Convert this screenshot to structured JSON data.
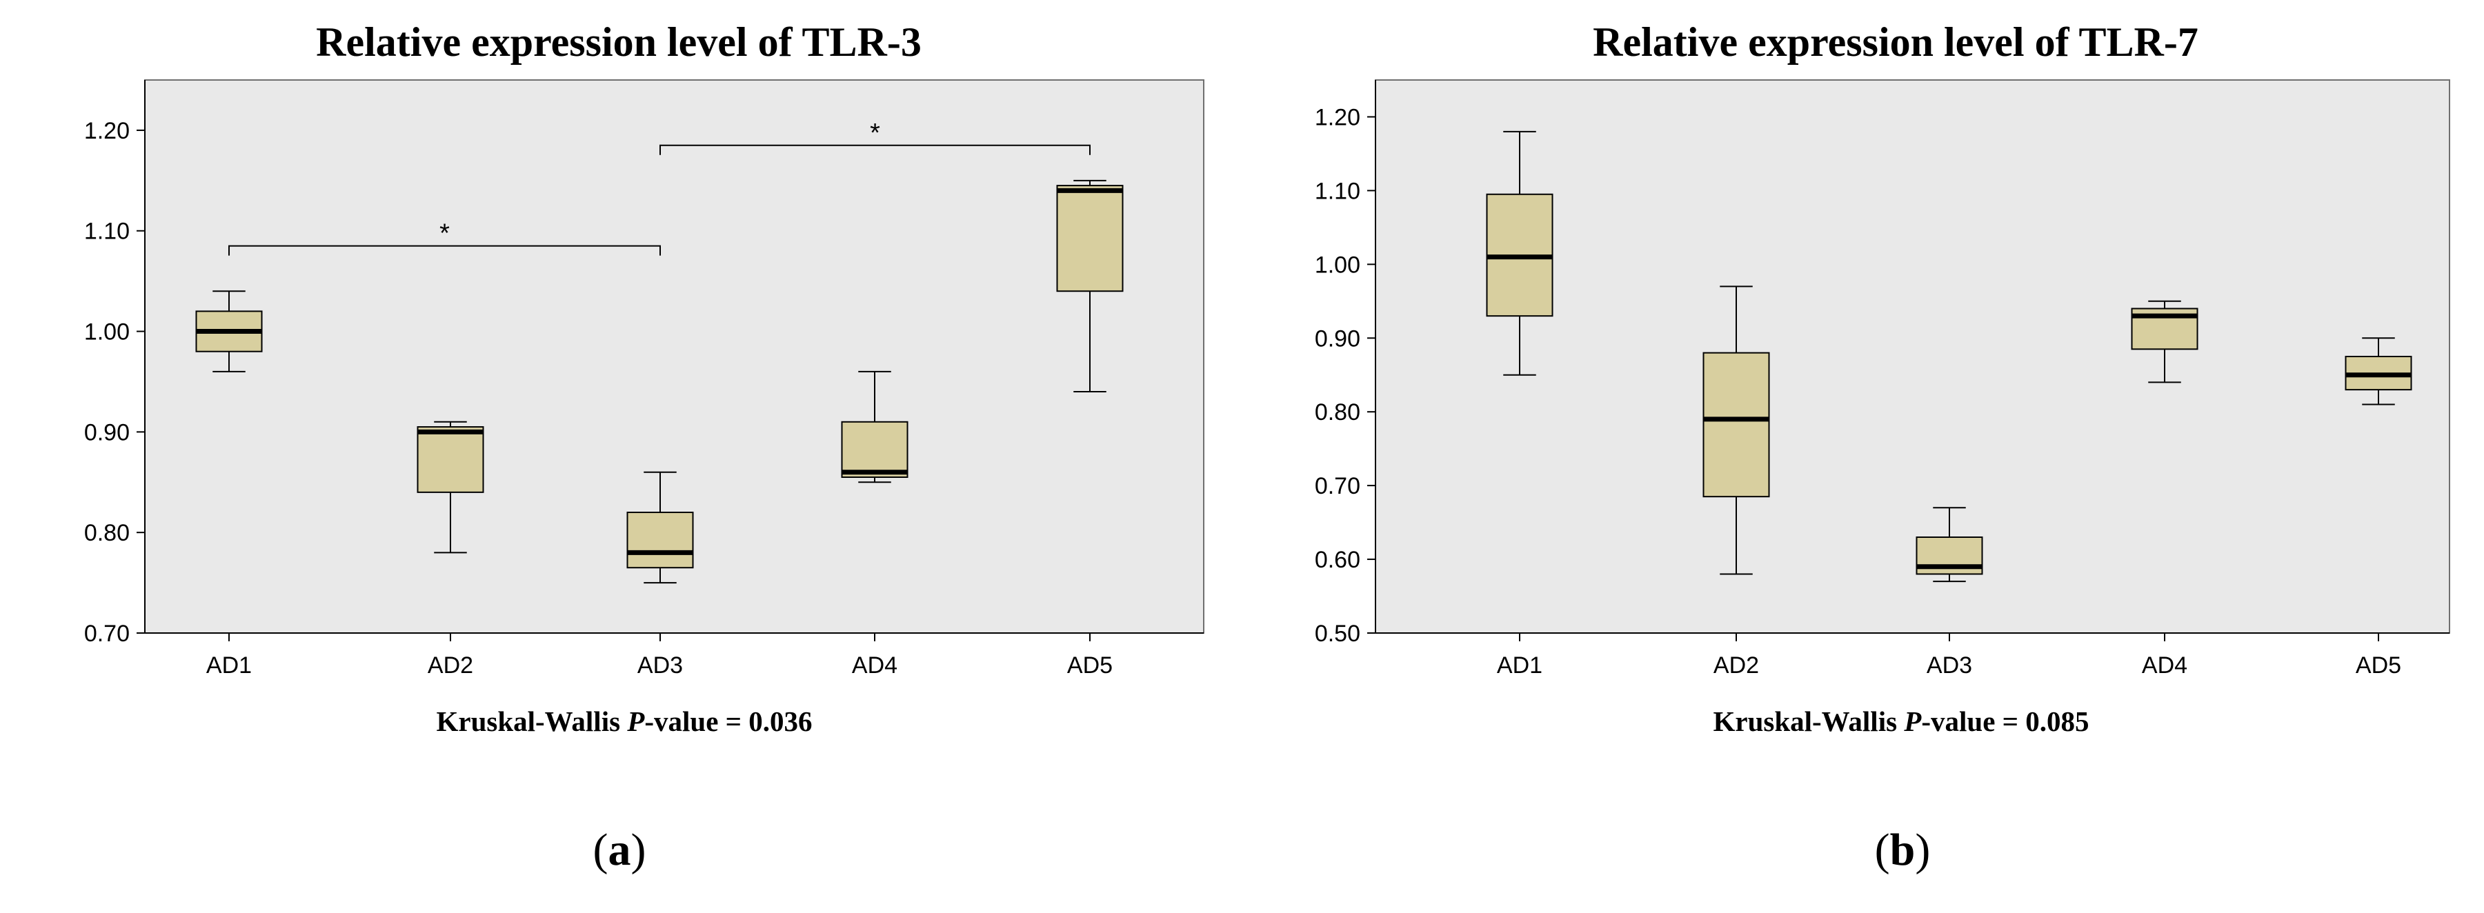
{
  "chart_data": [
    {
      "type": "boxplot",
      "title": "Relative expression level of TLR-3",
      "categories": [
        "AD1",
        "AD2",
        "AD3",
        "AD4",
        "AD5"
      ],
      "ylim": [
        0.7,
        1.25
      ],
      "yticks": [
        "0.70",
        "0.80",
        "0.90",
        "1.00",
        "1.10",
        "1.20"
      ],
      "boxes": [
        {
          "min": 0.96,
          "q1": 0.98,
          "median": 1.0,
          "q3": 1.02,
          "max": 1.04
        },
        {
          "min": 0.78,
          "q1": 0.84,
          "median": 0.9,
          "q3": 0.905,
          "max": 0.91
        },
        {
          "min": 0.75,
          "q1": 0.765,
          "median": 0.78,
          "q3": 0.82,
          "max": 0.86
        },
        {
          "min": 0.85,
          "q1": 0.855,
          "median": 0.86,
          "q3": 0.91,
          "max": 0.96
        },
        {
          "min": 0.94,
          "q1": 1.04,
          "median": 1.14,
          "q3": 1.145,
          "max": 1.15
        }
      ],
      "significance": [
        {
          "from": "AD1",
          "to": "AD3",
          "y": 1.085,
          "label": "*"
        },
        {
          "from": "AD3",
          "to": "AD5",
          "y": 1.185,
          "label": "*"
        }
      ],
      "footnote_prefix": "Kruskal-Wallis ",
      "footnote_italic": "P",
      "footnote_suffix": "-value = 0.036",
      "panel_letter": "a"
    },
    {
      "type": "boxplot",
      "title": "Relative expression level of TLR-7",
      "categories": [
        "AD1",
        "AD2",
        "AD3",
        "AD4",
        "AD5"
      ],
      "ylim": [
        0.5,
        1.25
      ],
      "yticks": [
        "0.50",
        "0.60",
        "0.70",
        "0.80",
        "0.90",
        "1.00",
        "1.10",
        "1.20"
      ],
      "boxes": [
        {
          "min": 0.85,
          "q1": 0.93,
          "median": 1.01,
          "q3": 1.095,
          "max": 1.18
        },
        {
          "min": 0.58,
          "q1": 0.685,
          "median": 0.79,
          "q3": 0.88,
          "max": 0.97
        },
        {
          "min": 0.57,
          "q1": 0.58,
          "median": 0.59,
          "q3": 0.63,
          "max": 0.67
        },
        {
          "min": 0.84,
          "q1": 0.885,
          "median": 0.93,
          "q3": 0.94,
          "max": 0.95
        },
        {
          "min": 0.81,
          "q1": 0.83,
          "median": 0.85,
          "q3": 0.875,
          "max": 0.9
        }
      ],
      "significance": [],
      "footnote_prefix": "Kruskal-Wallis ",
      "footnote_italic": "P",
      "footnote_suffix": "-value = 0.085",
      "panel_letter": "b"
    }
  ],
  "colors": {
    "plot_background": "#e9e9e9",
    "box_fill": "#d8cf9f",
    "stroke": "#000000",
    "frame": "#6f6f6f"
  }
}
